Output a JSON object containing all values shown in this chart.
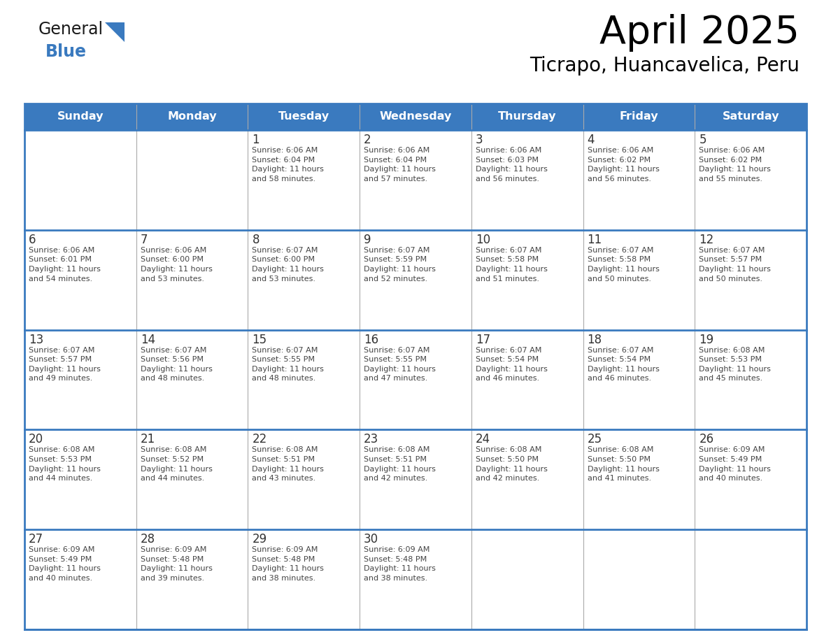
{
  "title": "April 2025",
  "subtitle": "Ticrapo, Huancavelica, Peru",
  "header_bg_color": "#3a7abf",
  "header_text_color": "#ffffff",
  "cell_bg_color": "#ffffff",
  "border_color": "#3a7abf",
  "text_color": "#444444",
  "day_num_color": "#333333",
  "grid_line_color": "#aaaaaa",
  "days_of_week": [
    "Sunday",
    "Monday",
    "Tuesday",
    "Wednesday",
    "Thursday",
    "Friday",
    "Saturday"
  ],
  "weeks": [
    [
      {
        "day": "",
        "info": ""
      },
      {
        "day": "",
        "info": ""
      },
      {
        "day": "1",
        "info": "Sunrise: 6:06 AM\nSunset: 6:04 PM\nDaylight: 11 hours\nand 58 minutes."
      },
      {
        "day": "2",
        "info": "Sunrise: 6:06 AM\nSunset: 6:04 PM\nDaylight: 11 hours\nand 57 minutes."
      },
      {
        "day": "3",
        "info": "Sunrise: 6:06 AM\nSunset: 6:03 PM\nDaylight: 11 hours\nand 56 minutes."
      },
      {
        "day": "4",
        "info": "Sunrise: 6:06 AM\nSunset: 6:02 PM\nDaylight: 11 hours\nand 56 minutes."
      },
      {
        "day": "5",
        "info": "Sunrise: 6:06 AM\nSunset: 6:02 PM\nDaylight: 11 hours\nand 55 minutes."
      }
    ],
    [
      {
        "day": "6",
        "info": "Sunrise: 6:06 AM\nSunset: 6:01 PM\nDaylight: 11 hours\nand 54 minutes."
      },
      {
        "day": "7",
        "info": "Sunrise: 6:06 AM\nSunset: 6:00 PM\nDaylight: 11 hours\nand 53 minutes."
      },
      {
        "day": "8",
        "info": "Sunrise: 6:07 AM\nSunset: 6:00 PM\nDaylight: 11 hours\nand 53 minutes."
      },
      {
        "day": "9",
        "info": "Sunrise: 6:07 AM\nSunset: 5:59 PM\nDaylight: 11 hours\nand 52 minutes."
      },
      {
        "day": "10",
        "info": "Sunrise: 6:07 AM\nSunset: 5:58 PM\nDaylight: 11 hours\nand 51 minutes."
      },
      {
        "day": "11",
        "info": "Sunrise: 6:07 AM\nSunset: 5:58 PM\nDaylight: 11 hours\nand 50 minutes."
      },
      {
        "day": "12",
        "info": "Sunrise: 6:07 AM\nSunset: 5:57 PM\nDaylight: 11 hours\nand 50 minutes."
      }
    ],
    [
      {
        "day": "13",
        "info": "Sunrise: 6:07 AM\nSunset: 5:57 PM\nDaylight: 11 hours\nand 49 minutes."
      },
      {
        "day": "14",
        "info": "Sunrise: 6:07 AM\nSunset: 5:56 PM\nDaylight: 11 hours\nand 48 minutes."
      },
      {
        "day": "15",
        "info": "Sunrise: 6:07 AM\nSunset: 5:55 PM\nDaylight: 11 hours\nand 48 minutes."
      },
      {
        "day": "16",
        "info": "Sunrise: 6:07 AM\nSunset: 5:55 PM\nDaylight: 11 hours\nand 47 minutes."
      },
      {
        "day": "17",
        "info": "Sunrise: 6:07 AM\nSunset: 5:54 PM\nDaylight: 11 hours\nand 46 minutes."
      },
      {
        "day": "18",
        "info": "Sunrise: 6:07 AM\nSunset: 5:54 PM\nDaylight: 11 hours\nand 46 minutes."
      },
      {
        "day": "19",
        "info": "Sunrise: 6:08 AM\nSunset: 5:53 PM\nDaylight: 11 hours\nand 45 minutes."
      }
    ],
    [
      {
        "day": "20",
        "info": "Sunrise: 6:08 AM\nSunset: 5:53 PM\nDaylight: 11 hours\nand 44 minutes."
      },
      {
        "day": "21",
        "info": "Sunrise: 6:08 AM\nSunset: 5:52 PM\nDaylight: 11 hours\nand 44 minutes."
      },
      {
        "day": "22",
        "info": "Sunrise: 6:08 AM\nSunset: 5:51 PM\nDaylight: 11 hours\nand 43 minutes."
      },
      {
        "day": "23",
        "info": "Sunrise: 6:08 AM\nSunset: 5:51 PM\nDaylight: 11 hours\nand 42 minutes."
      },
      {
        "day": "24",
        "info": "Sunrise: 6:08 AM\nSunset: 5:50 PM\nDaylight: 11 hours\nand 42 minutes."
      },
      {
        "day": "25",
        "info": "Sunrise: 6:08 AM\nSunset: 5:50 PM\nDaylight: 11 hours\nand 41 minutes."
      },
      {
        "day": "26",
        "info": "Sunrise: 6:09 AM\nSunset: 5:49 PM\nDaylight: 11 hours\nand 40 minutes."
      }
    ],
    [
      {
        "day": "27",
        "info": "Sunrise: 6:09 AM\nSunset: 5:49 PM\nDaylight: 11 hours\nand 40 minutes."
      },
      {
        "day": "28",
        "info": "Sunrise: 6:09 AM\nSunset: 5:48 PM\nDaylight: 11 hours\nand 39 minutes."
      },
      {
        "day": "29",
        "info": "Sunrise: 6:09 AM\nSunset: 5:48 PM\nDaylight: 11 hours\nand 38 minutes."
      },
      {
        "day": "30",
        "info": "Sunrise: 6:09 AM\nSunset: 5:48 PM\nDaylight: 11 hours\nand 38 minutes."
      },
      {
        "day": "",
        "info": ""
      },
      {
        "day": "",
        "info": ""
      },
      {
        "day": "",
        "info": ""
      }
    ]
  ],
  "logo_color_general": "#1a1a1a",
  "logo_color_blue": "#3a7abf",
  "logo_triangle_color": "#3a7abf",
  "fig_width": 11.88,
  "fig_height": 9.18,
  "dpi": 100
}
